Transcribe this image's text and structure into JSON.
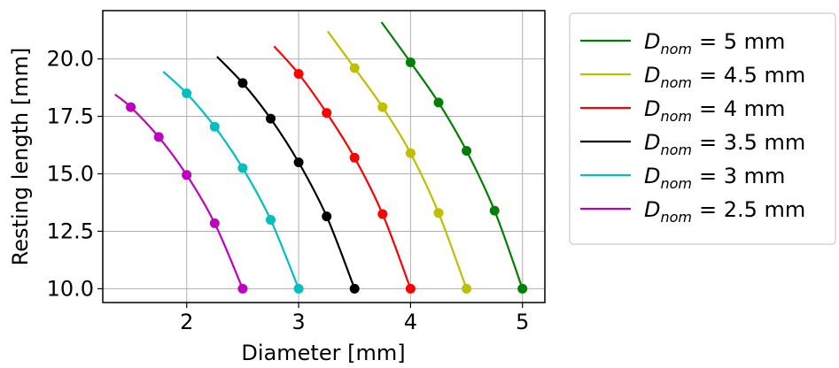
{
  "chart_data": {
    "type": "line",
    "xlabel": "Diameter [mm]",
    "ylabel": "Resting length [mm]",
    "xlim": [
      1.25,
      5.2
    ],
    "ylim": [
      9.4,
      22.1
    ],
    "xticks": [
      2,
      3,
      4,
      5
    ],
    "yticks": [
      10.0,
      12.5,
      15.0,
      17.5,
      20.0
    ],
    "xtick_labels": [
      "2",
      "3",
      "4",
      "5"
    ],
    "ytick_labels": [
      "10.0",
      "12.5",
      "15.0",
      "17.5",
      "20.0"
    ],
    "grid": true,
    "legend_position": "outside-right",
    "legend_entry_prefix": "D",
    "legend_entry_subscript": "nom",
    "series": [
      {
        "name": "= 5 mm",
        "color": "#008000",
        "curve": [
          [
            3.74,
            21.6
          ],
          [
            4.0,
            19.85
          ],
          [
            4.25,
            18.1
          ],
          [
            4.5,
            16.0
          ],
          [
            4.75,
            13.4
          ],
          [
            5.0,
            10.0
          ]
        ],
        "markers": [
          [
            4.0,
            19.85
          ],
          [
            4.25,
            18.1
          ],
          [
            4.5,
            16.0
          ],
          [
            4.75,
            13.4
          ],
          [
            5.0,
            10.0
          ]
        ]
      },
      {
        "name": "= 4.5 mm",
        "color": "#bfbf00",
        "curve": [
          [
            3.26,
            21.2
          ],
          [
            3.5,
            19.6
          ],
          [
            3.75,
            17.9
          ],
          [
            4.0,
            15.9
          ],
          [
            4.25,
            13.3
          ],
          [
            4.5,
            10.0
          ]
        ],
        "markers": [
          [
            3.5,
            19.6
          ],
          [
            3.75,
            17.9
          ],
          [
            4.0,
            15.9
          ],
          [
            4.25,
            13.3
          ],
          [
            4.5,
            10.0
          ]
        ]
      },
      {
        "name": "= 4 mm",
        "color": "#ff0000",
        "curve": [
          [
            2.78,
            20.55
          ],
          [
            3.0,
            19.35
          ],
          [
            3.25,
            17.65
          ],
          [
            3.5,
            15.7
          ],
          [
            3.75,
            13.25
          ],
          [
            4.0,
            10.0
          ]
        ],
        "markers": [
          [
            3.0,
            19.35
          ],
          [
            3.25,
            17.65
          ],
          [
            3.5,
            15.7
          ],
          [
            3.75,
            13.25
          ],
          [
            4.0,
            10.0
          ]
        ]
      },
      {
        "name": "= 3.5 mm",
        "color": "#000000",
        "curve": [
          [
            2.27,
            20.1
          ],
          [
            2.5,
            18.95
          ],
          [
            2.75,
            17.4
          ],
          [
            3.0,
            15.5
          ],
          [
            3.25,
            13.15
          ],
          [
            3.5,
            10.0
          ]
        ],
        "markers": [
          [
            2.5,
            18.95
          ],
          [
            2.75,
            17.4
          ],
          [
            3.0,
            15.5
          ],
          [
            3.25,
            13.15
          ],
          [
            3.5,
            10.0
          ]
        ]
      },
      {
        "name": "= 3 mm",
        "color": "#00bfbf",
        "curve": [
          [
            1.79,
            19.45
          ],
          [
            2.0,
            18.5
          ],
          [
            2.25,
            17.05
          ],
          [
            2.5,
            15.25
          ],
          [
            2.75,
            13.0
          ],
          [
            3.0,
            10.0
          ]
        ],
        "markers": [
          [
            2.0,
            18.5
          ],
          [
            2.25,
            17.05
          ],
          [
            2.5,
            15.25
          ],
          [
            2.75,
            13.0
          ],
          [
            3.0,
            10.0
          ]
        ]
      },
      {
        "name": "= 2.5 mm",
        "color": "#bf00bf",
        "curve": [
          [
            1.36,
            18.45
          ],
          [
            1.5,
            17.9
          ],
          [
            1.75,
            16.6
          ],
          [
            2.0,
            14.95
          ],
          [
            2.25,
            12.85
          ],
          [
            2.5,
            10.0
          ]
        ],
        "markers": [
          [
            1.5,
            17.9
          ],
          [
            1.75,
            16.6
          ],
          [
            2.0,
            14.95
          ],
          [
            2.25,
            12.85
          ],
          [
            2.5,
            10.0
          ]
        ]
      }
    ]
  }
}
